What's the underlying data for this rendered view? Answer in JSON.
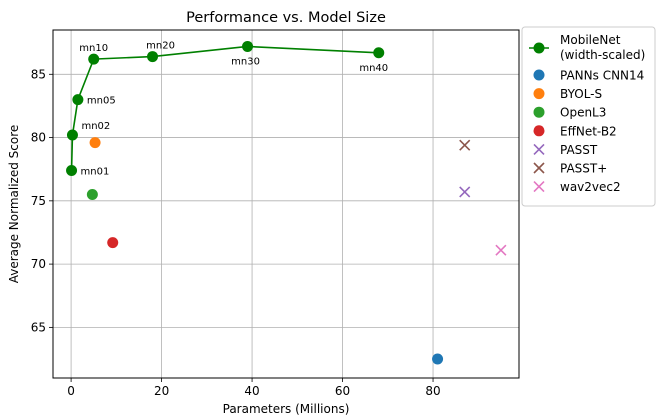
{
  "chart_data": {
    "type": "scatter",
    "title": "Performance vs. Model Size",
    "xlabel": "Parameters (Millions)",
    "ylabel": "Average Normalized Score",
    "xlim": [
      -4,
      99
    ],
    "ylim": [
      61,
      88.5
    ],
    "xticks": [
      0,
      20,
      40,
      60,
      80
    ],
    "yticks": [
      65,
      70,
      75,
      80,
      85
    ],
    "grid": true,
    "legend_position": "outside right",
    "line_series": {
      "name": "MobileNet\n(width-scaled)",
      "color": "#008000",
      "points": [
        {
          "label": "mn01",
          "x": 0.1,
          "y": 77.4
        },
        {
          "label": "mn02",
          "x": 0.3,
          "y": 80.2
        },
        {
          "label": "mn05",
          "x": 1.5,
          "y": 83.0
        },
        {
          "label": "mn10",
          "x": 5.0,
          "y": 86.2
        },
        {
          "label": "mn20",
          "x": 18.0,
          "y": 86.4
        },
        {
          "label": "mn30",
          "x": 39.0,
          "y": 87.2
        },
        {
          "label": "mn40",
          "x": 68.0,
          "y": 86.7
        }
      ]
    },
    "series": [
      {
        "name": "PANNs CNN14",
        "marker": "circle",
        "color": "#1f77b4",
        "x": 81.0,
        "y": 62.5
      },
      {
        "name": "BYOL-S",
        "marker": "circle",
        "color": "#ff7f0e",
        "x": 5.3,
        "y": 79.6
      },
      {
        "name": "OpenL3",
        "marker": "circle",
        "color": "#2ca02c",
        "x": 4.7,
        "y": 75.5
      },
      {
        "name": "EffNet-B2",
        "marker": "circle",
        "color": "#d62728",
        "x": 9.2,
        "y": 71.7
      },
      {
        "name": "PASST",
        "marker": "x",
        "color": "#9467bd",
        "x": 87.0,
        "y": 75.7
      },
      {
        "name": "PASST+",
        "marker": "x",
        "color": "#8c564b",
        "x": 87.0,
        "y": 79.4
      },
      {
        "name": "wav2vec2",
        "marker": "x",
        "color": "#e377c2",
        "x": 95.0,
        "y": 71.1
      }
    ]
  }
}
